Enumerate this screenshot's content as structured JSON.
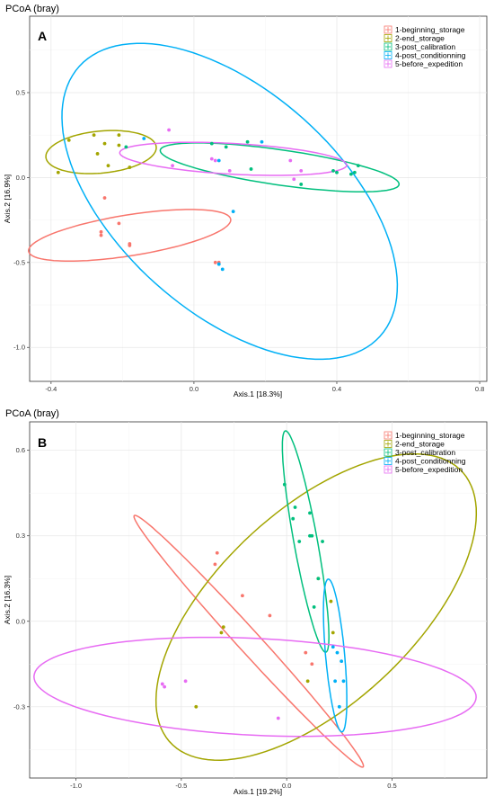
{
  "chart_data": [
    {
      "type": "scatter",
      "panel": "A",
      "title": "PCoA (bray)",
      "xlabel": "Axis.1   [18.3%]",
      "ylabel": "Axis.2   [16.9%]",
      "xlim": [
        -0.46,
        0.82
      ],
      "ylim": [
        -1.2,
        0.95
      ],
      "x_ticks": [
        -0.4,
        0.0,
        0.4,
        0.8
      ],
      "x_tick_labels": [
        "-0.4",
        "0.0",
        "0.4",
        "0.8"
      ],
      "y_ticks": [
        -1.0,
        -0.5,
        0.0,
        0.5
      ],
      "y_tick_labels": [
        "-1.0",
        "-0.5",
        "0.0",
        "0.5"
      ],
      "grid": true,
      "legend_position": "top-right",
      "series": [
        {
          "name": "1-beginning_storage",
          "color": "#F8766D",
          "points": [
            [
              -0.25,
              -0.12
            ],
            [
              -0.21,
              -0.27
            ],
            [
              -0.26,
              -0.32
            ],
            [
              -0.26,
              -0.34
            ],
            [
              -0.18,
              -0.39
            ],
            [
              -0.18,
              -0.4
            ],
            [
              0.06,
              -0.5
            ],
            [
              0.07,
              -0.5
            ]
          ],
          "ellipse": {
            "cx": -0.18,
            "cy": -0.34,
            "rx": 0.3,
            "ry": 0.115,
            "angle": 21
          }
        },
        {
          "name": "2-end_storage",
          "color": "#A3A500",
          "points": [
            [
              -0.38,
              0.03
            ],
            [
              -0.35,
              0.22
            ],
            [
              -0.28,
              0.25
            ],
            [
              -0.27,
              0.14
            ],
            [
              -0.25,
              0.2
            ],
            [
              -0.24,
              0.07
            ],
            [
              -0.21,
              0.25
            ],
            [
              -0.21,
              0.19
            ],
            [
              -0.18,
              0.06
            ]
          ],
          "ellipse": {
            "cx": -0.26,
            "cy": 0.15,
            "rx": 0.16,
            "ry": 0.12,
            "angle": 23
          }
        },
        {
          "name": "3-post_calibration",
          "color": "#00BF7D",
          "points": [
            [
              -0.19,
              0.18
            ],
            [
              0.05,
              0.2
            ],
            [
              0.09,
              0.18
            ],
            [
              0.15,
              0.21
            ],
            [
              0.16,
              0.05
            ],
            [
              0.3,
              -0.04
            ],
            [
              0.39,
              0.04
            ],
            [
              0.4,
              0.03
            ],
            [
              0.44,
              0.02
            ],
            [
              0.45,
              0.03
            ],
            [
              0.46,
              0.07
            ]
          ],
          "ellipse": {
            "cx": 0.24,
            "cy": 0.06,
            "rx": 0.35,
            "ry": 0.1,
            "angle": -18
          }
        },
        {
          "name": "4-post_conditionning",
          "color": "#00B0F6",
          "points": [
            [
              -0.14,
              0.23
            ],
            [
              0.07,
              0.1
            ],
            [
              0.19,
              0.21
            ],
            [
              0.11,
              -0.2
            ],
            [
              0.07,
              -0.51
            ],
            [
              0.08,
              -0.54
            ]
          ],
          "ellipse": {
            "cx": 0.1,
            "cy": -0.14,
            "rx": 0.38,
            "ry": 0.97,
            "angle": 18
          }
        },
        {
          "name": "5-before_expedition",
          "color": "#E76BF3",
          "points": [
            [
              -0.07,
              0.28
            ],
            [
              -0.06,
              0.07
            ],
            [
              0.05,
              0.11
            ],
            [
              0.06,
              0.1
            ],
            [
              0.1,
              0.04
            ],
            [
              0.27,
              0.1
            ],
            [
              0.28,
              -0.01
            ],
            [
              0.3,
              0.04
            ]
          ],
          "ellipse": {
            "cx": 0.11,
            "cy": 0.11,
            "rx": 0.32,
            "ry": 0.09,
            "angle": -7
          }
        }
      ]
    },
    {
      "type": "scatter",
      "panel": "B",
      "title": "PCoA (bray)",
      "xlabel": "Axis.1   [19.2%]",
      "ylabel": "Axis.2   [16.3%]",
      "xlim": [
        -1.22,
        0.95
      ],
      "ylim": [
        -0.55,
        0.7
      ],
      "x_ticks": [
        -1.0,
        -0.5,
        0.0,
        0.5
      ],
      "x_tick_labels": [
        "-1.0",
        "-0.5",
        "0.0",
        "0.5"
      ],
      "y_ticks": [
        -0.3,
        0.0,
        0.3,
        0.6
      ],
      "y_tick_labels": [
        "-0.3",
        "0.0",
        "0.3",
        "0.6"
      ],
      "grid": true,
      "legend_position": "top-right",
      "series": [
        {
          "name": "1-beginning_storage",
          "color": "#F8766D",
          "points": [
            [
              -0.33,
              0.24
            ],
            [
              -0.34,
              0.2
            ],
            [
              -0.21,
              0.09
            ],
            [
              -0.08,
              0.02
            ],
            [
              0.09,
              -0.11
            ],
            [
              0.12,
              -0.15
            ]
          ],
          "ellipse": {
            "cx": -0.18,
            "cy": -0.07,
            "rx": 0.7,
            "ry": 0.045,
            "angle": -39
          }
        },
        {
          "name": "2-end_storage",
          "color": "#A3A500",
          "points": [
            [
              -0.3,
              -0.02
            ],
            [
              -0.31,
              -0.04
            ],
            [
              -0.43,
              -0.3
            ],
            [
              0.1,
              -0.21
            ],
            [
              0.21,
              0.07
            ],
            [
              0.22,
              -0.04
            ],
            [
              0.15,
              0.15
            ]
          ],
          "ellipse": {
            "cx": 0.14,
            "cy": 0.05,
            "rx": 0.85,
            "ry": 0.38,
            "angle": 30
          }
        },
        {
          "name": "3-post_calibration",
          "color": "#00BF7D",
          "points": [
            [
              -0.01,
              0.48
            ],
            [
              0.03,
              0.36
            ],
            [
              0.04,
              0.4
            ],
            [
              0.06,
              0.28
            ],
            [
              0.11,
              0.38
            ],
            [
              0.11,
              0.3
            ],
            [
              0.12,
              0.3
            ],
            [
              0.17,
              0.28
            ],
            [
              0.15,
              0.15
            ],
            [
              0.13,
              0.05
            ]
          ],
          "ellipse": {
            "cx": 0.09,
            "cy": 0.28,
            "rx": 0.4,
            "ry": 0.055,
            "angle": -76
          }
        },
        {
          "name": "4-post_conditionning",
          "color": "#00B0F6",
          "points": [
            [
              0.22,
              -0.09
            ],
            [
              0.24,
              -0.11
            ],
            [
              0.26,
              -0.14
            ],
            [
              0.23,
              -0.21
            ],
            [
              0.27,
              -0.21
            ],
            [
              0.25,
              -0.3
            ]
          ],
          "ellipse": {
            "cx": 0.23,
            "cy": -0.12,
            "rx": 0.27,
            "ry": 0.045,
            "angle": -83
          }
        },
        {
          "name": "5-before_expedition",
          "color": "#E76BF3",
          "points": [
            [
              -0.59,
              -0.22
            ],
            [
              -0.58,
              -0.23
            ],
            [
              -0.48,
              -0.21
            ],
            [
              -0.04,
              -0.34
            ]
          ],
          "ellipse": {
            "cx": -0.15,
            "cy": -0.23,
            "rx": 1.05,
            "ry": 0.17,
            "angle": -2
          }
        }
      ]
    }
  ]
}
